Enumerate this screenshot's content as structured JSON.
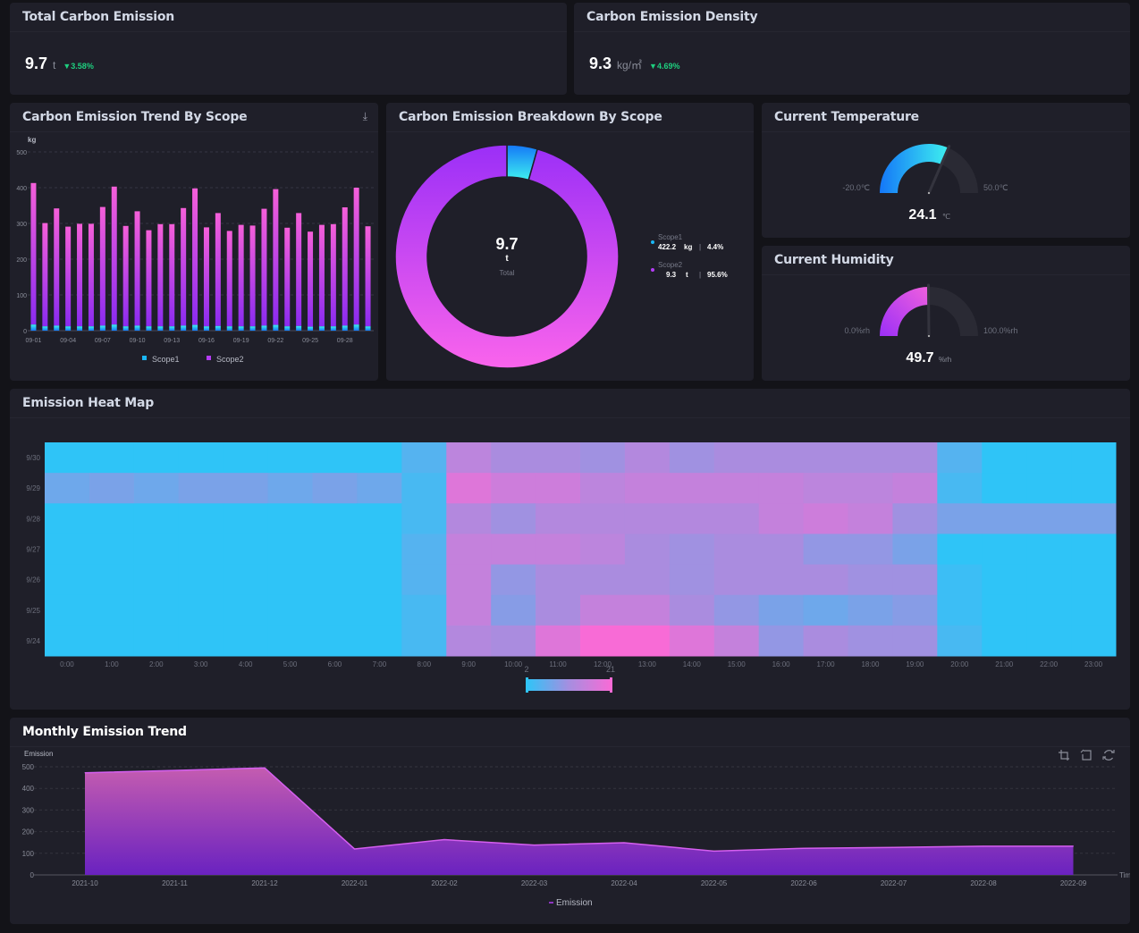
{
  "kpis": [
    {
      "title": "Total Carbon Emission",
      "value": "9.7",
      "unit": "t",
      "delta": "3.58%",
      "delta_icon": "triangle-down"
    },
    {
      "title": "Carbon Emission Density",
      "value": "9.3",
      "unit": "kg/㎡",
      "delta": "4.69%",
      "delta_icon": "triangle-down"
    }
  ],
  "trend": {
    "title": "Carbon Emission Trend By Scope",
    "download_icon": "download-icon",
    "chart_data": {
      "type": "bar",
      "stacked": true,
      "ylabel": "kg",
      "ylim": [
        0,
        500
      ],
      "yticks": [
        0,
        100,
        200,
        300,
        400,
        500
      ],
      "categories": [
        "09-01",
        "09-02",
        "09-03",
        "09-04",
        "09-05",
        "09-06",
        "09-07",
        "09-08",
        "09-09",
        "09-10",
        "09-11",
        "09-12",
        "09-13",
        "09-14",
        "09-15",
        "09-16",
        "09-17",
        "09-18",
        "09-19",
        "09-20",
        "09-21",
        "09-22",
        "09-23",
        "09-24",
        "09-25",
        "09-26",
        "09-27",
        "09-28",
        "09-29",
        "09-30"
      ],
      "xtick_labels": [
        "09-01",
        "09-04",
        "09-07",
        "09-10",
        "09-13",
        "09-16",
        "09-19",
        "09-22",
        "09-25",
        "09-28"
      ],
      "series": [
        {
          "name": "Scope1",
          "color": "#1ab7f5",
          "values": [
            17,
            12,
            14,
            12,
            12,
            12,
            14,
            17,
            12,
            14,
            12,
            12,
            12,
            14,
            16,
            12,
            13,
            12,
            12,
            12,
            14,
            16,
            12,
            13,
            11,
            12,
            12,
            14,
            17,
            12
          ]
        },
        {
          "name": "Scope2",
          "color": "#b43cf5",
          "values": [
            396,
            289,
            328,
            279,
            287,
            287,
            332,
            386,
            281,
            320,
            269,
            286,
            286,
            329,
            382,
            277,
            316,
            267,
            284,
            282,
            327,
            380,
            276,
            316,
            266,
            284,
            286,
            331,
            383,
            280
          ]
        }
      ],
      "legend": "bottom",
      "grid": true
    }
  },
  "breakdown": {
    "title": "Carbon Emission Breakdown By Scope",
    "center_value": "9.7",
    "center_unit": "t",
    "center_label": "Total",
    "chart_data": {
      "type": "pie",
      "donut": true,
      "slices": [
        {
          "name": "Scope1",
          "value_text": "422.2",
          "unit": "kg",
          "percent": 4.4,
          "percent_text": "4.4%",
          "color": "#1ab7f5"
        },
        {
          "name": "Scope2",
          "value_text": "9.3",
          "unit": "t",
          "percent": 95.6,
          "percent_text": "95.6%",
          "color": "#b43cf5"
        }
      ]
    }
  },
  "temperature": {
    "title": "Current Temperature",
    "min": -20,
    "max": 50,
    "min_label": "-20.0℃",
    "max_label": "50.0℃",
    "value": 24.1,
    "value_text": "24.1",
    "unit": "℃"
  },
  "humidity": {
    "title": "Current Humidity",
    "min": 0,
    "max": 100,
    "min_label": "0.0%rh",
    "max_label": "100.0%rh",
    "value": 49.7,
    "value_text": "49.7",
    "unit": "%rh"
  },
  "heatmap": {
    "title": "Emission Heat Map",
    "chart_data": {
      "type": "heatmap",
      "x": [
        "0:00",
        "1:00",
        "2:00",
        "3:00",
        "4:00",
        "5:00",
        "6:00",
        "7:00",
        "8:00",
        "9:00",
        "10:00",
        "11:00",
        "12:00",
        "13:00",
        "14:00",
        "15:00",
        "16:00",
        "17:00",
        "18:00",
        "19:00",
        "20:00",
        "21:00",
        "22:00",
        "23:00"
      ],
      "rows": [
        {
          "date": "9/30",
          "values": [
            2,
            2,
            2,
            2,
            2,
            2,
            2,
            2,
            5,
            14,
            12,
            12,
            11,
            13,
            11,
            12,
            12,
            12,
            12,
            12,
            5,
            2,
            2,
            2
          ]
        },
        {
          "date": "9/29",
          "values": [
            7,
            8,
            7,
            8,
            8,
            7,
            8,
            7,
            4,
            18,
            16,
            16,
            14,
            15,
            15,
            15,
            15,
            14,
            14,
            15,
            4,
            2,
            2,
            2
          ]
        },
        {
          "date": "9/28",
          "values": [
            2,
            2,
            2,
            2,
            2,
            2,
            2,
            2,
            4,
            13,
            11,
            13,
            13,
            13,
            13,
            13,
            15,
            16,
            15,
            11,
            8,
            8,
            8,
            8
          ]
        },
        {
          "date": "9/27",
          "values": [
            2,
            2,
            2,
            2,
            2,
            2,
            2,
            2,
            5,
            15,
            15,
            15,
            14,
            12,
            11,
            12,
            12,
            10,
            10,
            8,
            2,
            2,
            2,
            2
          ]
        },
        {
          "date": "9/26",
          "values": [
            2,
            2,
            2,
            2,
            2,
            2,
            2,
            2,
            5,
            15,
            10,
            12,
            12,
            12,
            11,
            12,
            12,
            12,
            11,
            11,
            3,
            2,
            2,
            2
          ]
        },
        {
          "date": "9/25",
          "values": [
            2,
            2,
            2,
            2,
            2,
            2,
            2,
            2,
            4,
            15,
            9,
            12,
            15,
            15,
            12,
            10,
            8,
            7,
            8,
            9,
            3,
            2,
            2,
            2
          ]
        },
        {
          "date": "9/24",
          "values": [
            2,
            2,
            2,
            2,
            2,
            2,
            2,
            2,
            4,
            13,
            12,
            18,
            21,
            21,
            18,
            15,
            10,
            12,
            11,
            11,
            4,
            2,
            2,
            2
          ]
        }
      ],
      "visual_map": {
        "min": 2,
        "max": 21,
        "min_label": "2",
        "max_label": "21",
        "colors": [
          "#2fc4f7",
          "#a68ee0",
          "#f86bd6"
        ]
      }
    }
  },
  "monthly": {
    "title": "Monthly Emission Trend",
    "toolbox": [
      "zoom-icon",
      "zoom-reset-icon",
      "restore-icon"
    ],
    "chart_data": {
      "type": "area",
      "ylabel": "Emission",
      "xlabel": "Time",
      "ylim": [
        0,
        500
      ],
      "yticks": [
        0,
        100,
        200,
        300,
        400,
        500
      ],
      "categories": [
        "2021-10",
        "2021-11",
        "2021-12",
        "2022-01",
        "2022-02",
        "2022-03",
        "2022-04",
        "2022-05",
        "2022-06",
        "2022-07",
        "2022-08",
        "2022-09"
      ],
      "series": [
        {
          "name": "Emission",
          "color": "#b43cf5",
          "values": [
            472,
            483,
            495,
            120,
            163,
            138,
            149,
            110,
            123,
            127,
            133,
            133
          ]
        }
      ],
      "legend": "bottom",
      "grid": true
    }
  }
}
